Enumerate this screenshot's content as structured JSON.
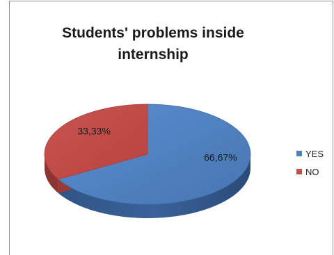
{
  "chart_data": {
    "type": "pie",
    "title": "Students' problems inside internship",
    "categories": [
      "YES",
      "NO"
    ],
    "values": [
      66.67,
      33.33
    ],
    "data_labels": [
      "66,67%",
      "33,33%"
    ],
    "colors": [
      "#4f81bd",
      "#c0504d"
    ],
    "legend_position": "right",
    "style": "3d"
  }
}
